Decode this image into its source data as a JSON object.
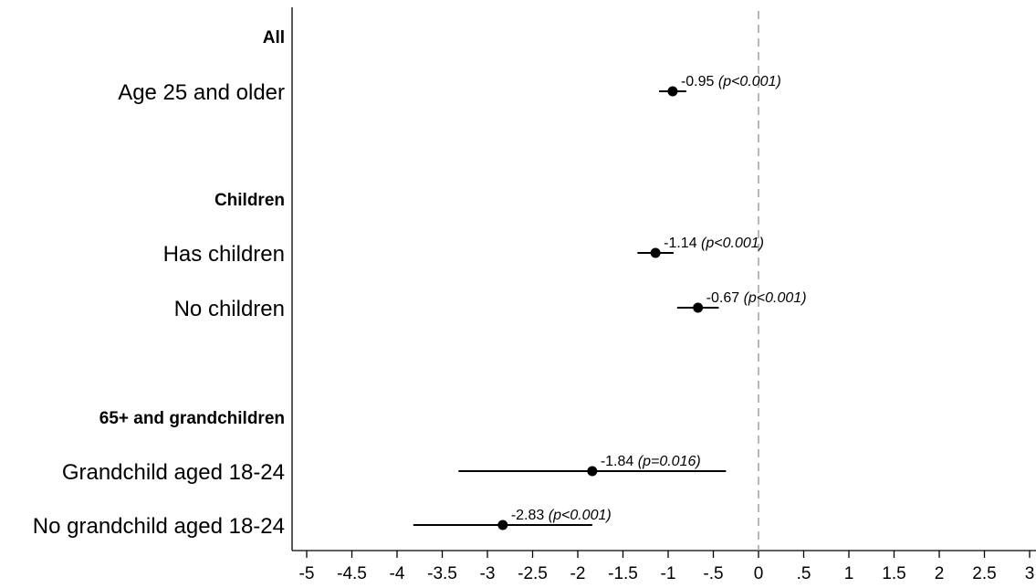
{
  "chart_data": {
    "type": "scatter",
    "subtype": "coefficient-plot",
    "xlim": [
      -5,
      3
    ],
    "x_ticks": [
      -5,
      -4.5,
      -4,
      -3.5,
      -3,
      -2.5,
      -2,
      -1.5,
      -1,
      -0.5,
      0,
      0.5,
      1,
      1.5,
      2,
      2.5,
      3
    ],
    "x_tick_labels": [
      "-5",
      "-4.5",
      "-4",
      "-3.5",
      "-3",
      "-2.5",
      "-2",
      "-1.5",
      "-1",
      "-.5",
      "0",
      ".5",
      "1",
      "1.5",
      "2",
      "2.5",
      "3"
    ],
    "reference_line": 0,
    "grid": false,
    "groups": [
      {
        "label": "All",
        "rows": [
          {
            "label": "Age 25 and older",
            "estimate": -0.95,
            "ci": [
              -1.1,
              -0.8
            ],
            "estimate_text": "-0.95",
            "p_text": "(p<0.001)"
          }
        ]
      },
      {
        "label": "Children",
        "rows": [
          {
            "label": "Has children",
            "estimate": -1.14,
            "ci": [
              -1.34,
              -0.94
            ],
            "estimate_text": "-1.14",
            "p_text": "(p<0.001)"
          },
          {
            "label": "No children",
            "estimate": -0.67,
            "ci": [
              -0.9,
              -0.44
            ],
            "estimate_text": "-0.67",
            "p_text": "(p<0.001)"
          }
        ]
      },
      {
        "label": "65+ and grandchildren",
        "rows": [
          {
            "label": "Grandchild aged 18-24",
            "estimate": -1.84,
            "ci": [
              -3.32,
              -0.36
            ],
            "estimate_text": "-1.84",
            "p_text": "(p=0.016)"
          },
          {
            "label": "No grandchild aged 18-24",
            "estimate": -2.83,
            "ci": [
              -3.82,
              -1.84
            ],
            "estimate_text": "-2.83",
            "p_text": "(p<0.001)"
          }
        ]
      }
    ],
    "colors": {
      "marker": "#000000",
      "ci": "#000000",
      "reference": "#a6a6a6"
    }
  }
}
